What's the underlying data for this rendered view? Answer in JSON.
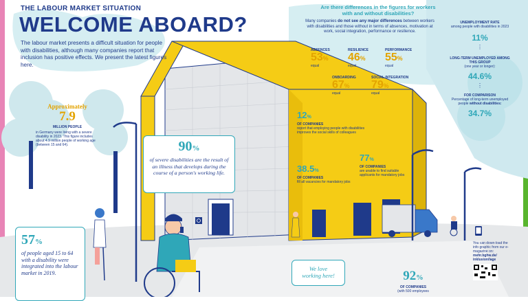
{
  "header": {
    "kicker": "THE LABOUR MARKET SITUATION",
    "title": "WELCOME ABOARD?",
    "intro": "The labour market presents a difficult situation for people with disabilities, although many companies report that inclusion has positive effects. We present the latest figures here."
  },
  "differences": {
    "question": "Are there differences in the figures for workers with and without disabilities?",
    "intro_a": "Many companies",
    "intro_b": "do not see any major differences",
    "intro_c": "between workers with disabilities and those without in terms of absences, motivation at work, social integration, performance or resilience.",
    "items": [
      {
        "label": "ABSENCES",
        "value": "53",
        "unit": "%",
        "note": "equal"
      },
      {
        "label": "RESILIENCE",
        "value": "46",
        "unit": "%",
        "note": "equal"
      },
      {
        "label": "PERFORMANCE",
        "value": "55",
        "unit": "%",
        "note": "equal"
      },
      {
        "label": "ONBOARDING",
        "value": "67",
        "unit": "%",
        "note": "equal"
      },
      {
        "label": "SOCIAL INTEGRATION",
        "value": "79",
        "unit": "%",
        "note": "equal"
      }
    ]
  },
  "unemployment": {
    "rate_label": "UNEMPLOYMENT RATE",
    "rate_desc": "among people with disabilities in 2023",
    "rate_value": "11%",
    "longterm_label": "LONG-TERM UNEMPLOYED AMONG THIS GROUP",
    "longterm_desc": "(one year or longer):",
    "longterm_value": "44.6%",
    "compare_label": "FOR COMPARISON",
    "compare_desc_a": "Percentage of long-term unemployed people",
    "compare_desc_b": "without disabilities:",
    "compare_value": "34.7%"
  },
  "millions": {
    "approx": "Approximately",
    "value": "7.9",
    "label": "MILLION PEOPLE",
    "desc": "in Germany were living with a severe disability in 2023. This figure includes about 4.9 million people of working age (between 15 and 64)."
  },
  "illness": {
    "value": "90",
    "unit": "%",
    "text": "of severe disabilities are the result of an illness that develops during the course of a person's working life."
  },
  "companies": [
    {
      "value": "12",
      "unit": "%",
      "label": "OF COMPANIES",
      "text": "report that employing people with disabilities improves the social skills of colleagues"
    },
    {
      "value": "38.5",
      "unit": "%",
      "label": "OF COMPANIES",
      "text": "fill all vacancies for mandatory jobs"
    },
    {
      "value": "77",
      "unit": "%",
      "label": "OF COMPANIES",
      "text": "are unable to find suitable applicants for mandatory jobs"
    }
  ],
  "integrated": {
    "value": "57",
    "unit": "%",
    "text": "of people aged 15 to 64 with a disability were integrated into the labour market in 2019."
  },
  "love": {
    "text": "We love working here!"
  },
  "bottom": {
    "value": "92",
    "unit": "%",
    "label": "OF COMPANIES",
    "text": "(with 500 employees"
  },
  "qr": {
    "text_a": "You can down-load the info graphic from our e-magazine on:",
    "url_a": "mehr.bghw.de/",
    "url_b": "inklusion/lage"
  },
  "colors": {
    "navy": "#1f3a8a",
    "teal": "#2fa7b8",
    "gold": "#e3a300",
    "yellow": "#f5cc15",
    "green": "#58b52e",
    "pink": "#e884b6"
  },
  "icons": [
    "mobile-phone-icon",
    "qr-code-icon",
    "wheelchair-sign-icon"
  ]
}
